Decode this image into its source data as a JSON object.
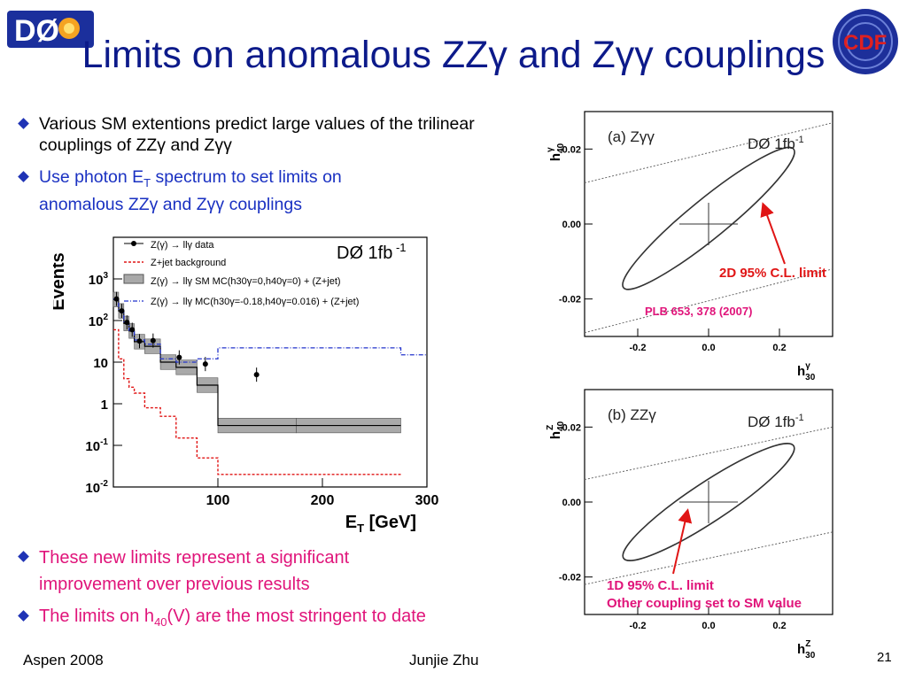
{
  "slide": {
    "title": "Limits on anomalous ZZγ and Zγγ couplings",
    "logo_left": "DØ",
    "logo_right": "CDF",
    "bullets_top": [
      {
        "text": "Various SM extentions predict large values of the trilinear couplings of ZZγ and Zγγ",
        "color": "#000000"
      },
      {
        "text_line1": "Use photon E",
        "sub": "T",
        "text_line1b": " spectrum to set limits on",
        "text_line2": "anomalous ZZγ and Zγγ couplings",
        "color": "#1a31c2"
      }
    ],
    "bullets_bottom": [
      {
        "line1": "These new limits represent a significant",
        "line2": "improvement over previous results",
        "color": "#e0147a"
      },
      {
        "pre": "The limits on h",
        "sub": "40",
        "post": "(V) are the most stringent to date",
        "color": "#e0147a"
      }
    ],
    "footer": {
      "left": "Aspen 2008",
      "center": "Junjie Zhu",
      "page": "21"
    }
  },
  "annotations": {
    "a_label": "2D 95% C.L. limit",
    "a_ref": "PLB 653, 378 (2007)",
    "b_label1": "1D 95% C.L. limit",
    "b_label2": "Other coupling set to SM value"
  },
  "chart_data": [
    {
      "type": "histogram",
      "experiment": "DØ 1fb-1",
      "xlabel": "E_T [GeV]",
      "ylabel": "Events",
      "xlim": [
        0,
        300
      ],
      "ylim": [
        0.01,
        10000
      ],
      "yscale": "log",
      "xticks": [
        100,
        200,
        300
      ],
      "yticks": [
        "10^-2",
        "10^-1",
        "1",
        "10",
        "10^2",
        "10^3"
      ],
      "legend": [
        "Z(γ) → llγ data",
        "Z+jet background",
        "Z(γ) → llγ SM MC(h30γ=0,h40γ=0) + (Z+jet)",
        "Z(γ) → llγ MC(h30γ=-0.18,h40γ=0.016) + (Z+jet)"
      ],
      "bin_edges": [
        0,
        5,
        10,
        15,
        20,
        30,
        45,
        60,
        80,
        100,
        175,
        275
      ],
      "sm_mc": [
        320,
        170,
        85,
        56,
        31,
        24,
        10,
        7.5,
        2.8,
        0.3,
        0.3
      ],
      "zjet_bg": [
        60,
        12,
        4,
        2.5,
        1.8,
        0.8,
        0.5,
        0.15,
        0.05,
        0.02,
        0.02
      ],
      "anomalous_mc": [
        330,
        175,
        90,
        58,
        34,
        27,
        12,
        10,
        12,
        22,
        22
      ],
      "data_x": [
        3,
        8,
        13,
        18,
        25,
        38,
        63,
        88,
        137
      ],
      "data_y": [
        330,
        170,
        90,
        60,
        32,
        33,
        13,
        9,
        5
      ]
    },
    {
      "type": "contour",
      "panel": "(a) Zγγ",
      "experiment": "DØ 1fb-1",
      "xlabel": "h30γ",
      "ylabel": "h40γ",
      "xlim": [
        -0.35,
        0.35
      ],
      "ylim": [
        -0.03,
        0.03
      ],
      "xticks": [
        -0.2,
        0.0,
        0.2
      ],
      "yticks": [
        -0.02,
        0.0,
        0.02
      ],
      "center": [
        0.0,
        0.0
      ],
      "ellipse_extreme": [
        [
          0.24,
          0.02
        ],
        [
          -0.24,
          -0.017
        ]
      ],
      "unitarity_lines": [
        [
          [
            -0.35,
            0.011
          ],
          [
            0.35,
            0.027
          ]
        ],
        [
          [
            -0.35,
            -0.029
          ],
          [
            0.35,
            -0.012
          ]
        ]
      ]
    },
    {
      "type": "contour",
      "panel": "(b) ZZγ",
      "experiment": "DØ 1fb-1",
      "xlabel": "h30Z",
      "ylabel": "h40Z",
      "xlim": [
        -0.35,
        0.35
      ],
      "ylim": [
        -0.03,
        0.03
      ],
      "xticks": [
        -0.2,
        0.0,
        0.2
      ],
      "yticks": [
        -0.02,
        0.0,
        0.02
      ],
      "center": [
        0.0,
        0.0
      ],
      "ellipse_extreme": [
        [
          0.24,
          0.015
        ],
        [
          -0.24,
          -0.015
        ]
      ],
      "unitarity_lines": [
        [
          [
            -0.35,
            0.006
          ],
          [
            0.35,
            0.02
          ]
        ],
        [
          [
            -0.35,
            -0.022
          ],
          [
            0.35,
            -0.008
          ]
        ]
      ]
    }
  ]
}
